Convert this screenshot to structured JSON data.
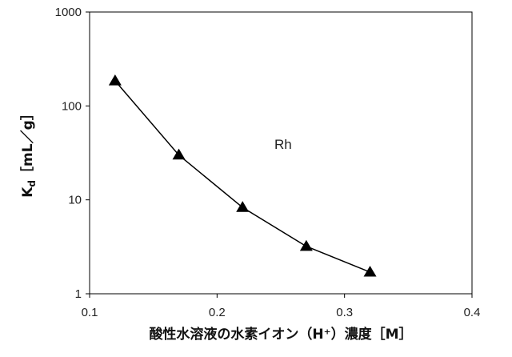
{
  "chart_data": {
    "type": "line",
    "xlabel": "酸性水溶液の水素イオン（H⁺）濃度［M］",
    "ylabel_main": "K",
    "ylabel_sub": "d",
    "ylabel_unit": "［mL／g］",
    "x_scale": "linear",
    "y_scale": "log",
    "xlim": [
      0.1,
      0.4
    ],
    "ylim": [
      1,
      1000
    ],
    "x_ticks": [
      "0.1",
      "0.2",
      "0.3",
      "0.4"
    ],
    "x_tick_values": [
      0.1,
      0.2,
      0.3,
      0.4
    ],
    "y_ticks": [
      "1",
      "10",
      "100",
      "1000"
    ],
    "y_tick_values": [
      1,
      10,
      100,
      1000
    ],
    "grid": false,
    "marker": "triangle",
    "series": [
      {
        "x": [
          0.12,
          0.17,
          0.22,
          0.27,
          0.32
        ],
        "y": [
          185,
          30,
          8.3,
          3.2,
          1.7
        ],
        "color": "#000000"
      }
    ],
    "annotations": [
      {
        "text": "Rh",
        "x": 0.245,
        "y": 35
      }
    ]
  }
}
